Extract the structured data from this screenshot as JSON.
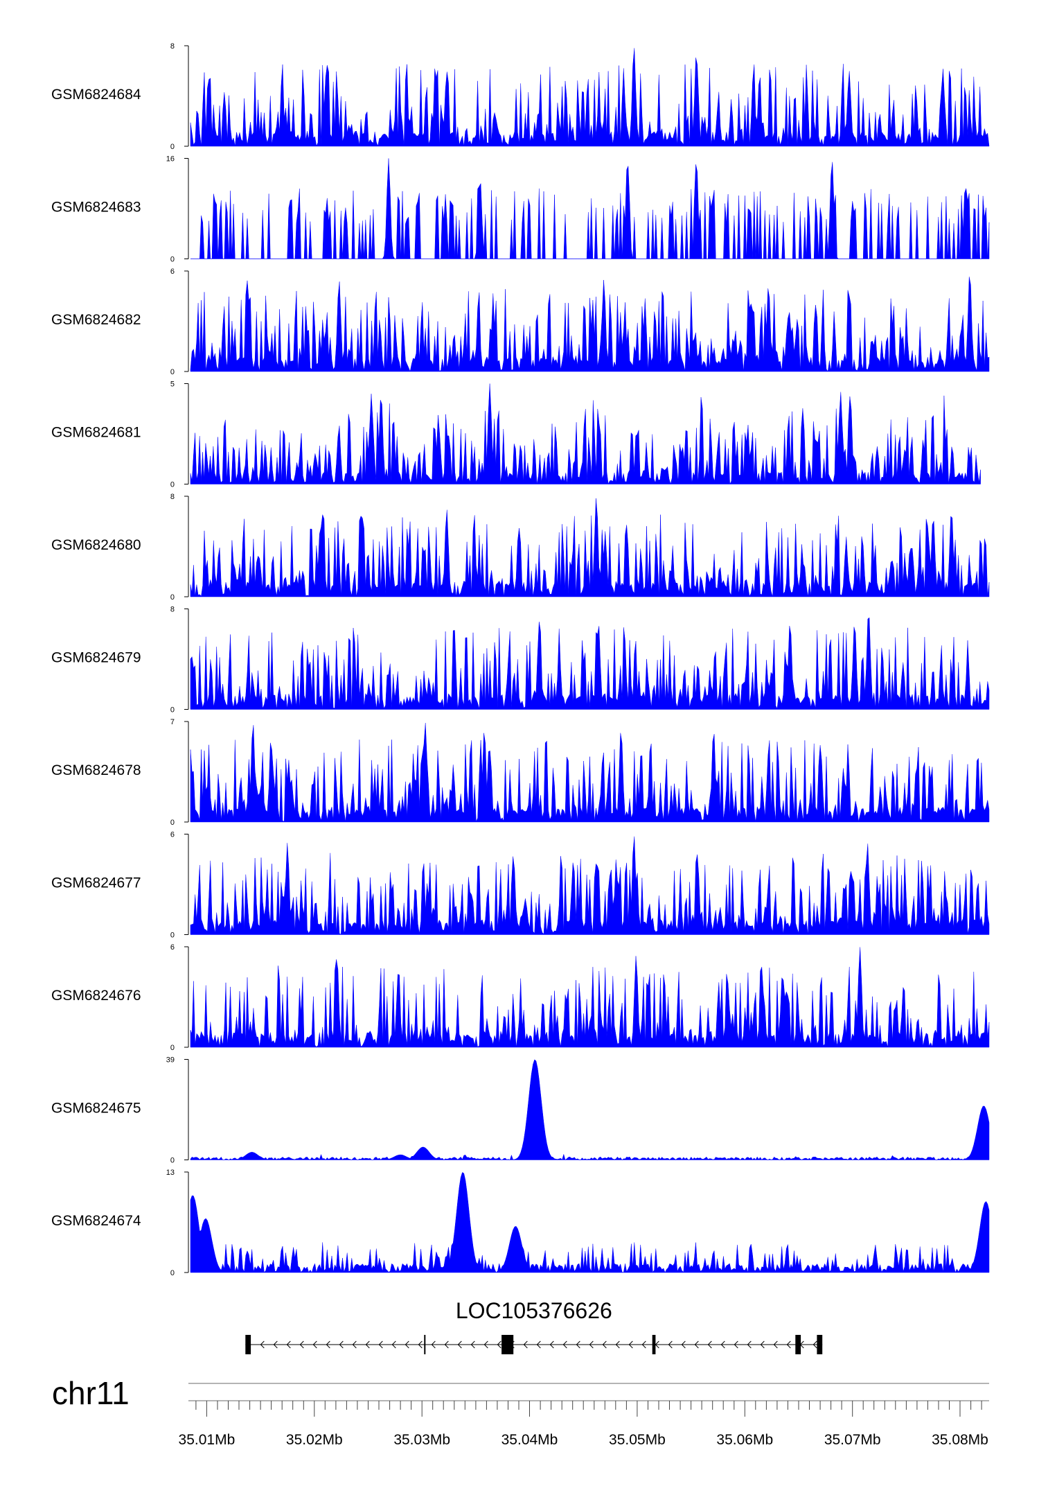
{
  "chart_data": {
    "type": "area",
    "chromosome": "chr11",
    "x_range_mb": [
      35.0083,
      35.0827
    ],
    "fill_color": "#0000ff",
    "x_tick_labels": [
      "35.01Mb",
      "35.02Mb",
      "35.03Mb",
      "35.04Mb",
      "35.05Mb",
      "35.06Mb",
      "35.07Mb",
      "35.08Mb"
    ],
    "x_ticks_mb": [
      35.01,
      35.02,
      35.03,
      35.04,
      35.05,
      35.06,
      35.07,
      35.08
    ],
    "tracks": [
      {
        "name": "GSM6824684",
        "ymax": 8,
        "ymin_label": "0",
        "ymax_label": "8",
        "pattern": "noise",
        "seed": 11,
        "density": 0.55,
        "peaks": [
          [
            35.0497,
            8
          ],
          [
            35.0555,
            7.5
          ],
          [
            35.0697,
            6
          ],
          [
            35.0784,
            6.2
          ],
          [
            35.0323,
            6
          ]
        ]
      },
      {
        "name": "GSM6824683",
        "ymax": 16,
        "ymin_label": "0",
        "ymax_label": "16",
        "pattern": "sparse",
        "seed": 23,
        "density": 0.33,
        "peaks": [
          [
            35.0269,
            16
          ],
          [
            35.0491,
            16
          ],
          [
            35.0555,
            16
          ],
          [
            35.0681,
            16
          ],
          [
            35.0805,
            12
          ],
          [
            35.0354,
            13
          ]
        ]
      },
      {
        "name": "GSM6824682",
        "ymax": 6,
        "ymin_label": "0",
        "ymax_label": "6",
        "pattern": "noise",
        "seed": 37,
        "density": 0.62,
        "peaks": [
          [
            35.0809,
            6
          ],
          [
            35.0138,
            5.5
          ],
          [
            35.0223,
            5.5
          ],
          [
            35.0469,
            5.5
          ],
          [
            35.0622,
            5.2
          ]
        ]
      },
      {
        "name": "GSM6824681",
        "ymax": 5,
        "ymin_label": "0",
        "ymax_label": "5",
        "pattern": "clustered",
        "seed": 41,
        "density": 0.5,
        "peaks": [
          [
            35.0363,
            5
          ],
          [
            35.0262,
            4.5
          ],
          [
            35.0253,
            4.5
          ],
          [
            35.0689,
            4.6
          ],
          [
            35.0698,
            4.5
          ]
        ],
        "end_mb": 35.0819
      },
      {
        "name": "GSM6824680",
        "ymax": 8,
        "ymin_label": "0",
        "ymax_label": "8",
        "pattern": "noise",
        "seed": 53,
        "density": 0.55,
        "peaks": [
          [
            35.0462,
            8
          ],
          [
            35.0244,
            7
          ],
          [
            35.0792,
            7
          ],
          [
            35.0323,
            7
          ],
          [
            35.0775,
            6.5
          ]
        ]
      },
      {
        "name": "GSM6824679",
        "ymax": 8,
        "ymin_label": "0",
        "ymax_label": "8",
        "pattern": "noise",
        "seed": 67,
        "density": 0.55,
        "peaks": [
          [
            35.0715,
            8
          ],
          [
            35.0702,
            7
          ],
          [
            35.0409,
            7
          ],
          [
            35.0464,
            7
          ],
          [
            35.0642,
            7
          ]
        ]
      },
      {
        "name": "GSM6824678",
        "ymax": 7,
        "ymin_label": "0",
        "ymax_label": "7",
        "pattern": "noise",
        "seed": 79,
        "density": 0.58,
        "peaks": [
          [
            35.0303,
            7
          ],
          [
            35.0143,
            7
          ],
          [
            35.0358,
            6.5
          ],
          [
            35.0485,
            6.5
          ],
          [
            35.0571,
            6.5
          ]
        ]
      },
      {
        "name": "GSM6824677",
        "ymax": 6,
        "ymin_label": "0",
        "ymax_label": "6",
        "pattern": "noise",
        "seed": 83,
        "density": 0.58,
        "peaks": [
          [
            35.0497,
            6
          ],
          [
            35.0175,
            5.5
          ],
          [
            35.0714,
            5.5
          ],
          [
            35.0385,
            4.8
          ],
          [
            35.0556,
            4.8
          ]
        ]
      },
      {
        "name": "GSM6824676",
        "ymax": 6,
        "ymin_label": "0",
        "ymax_label": "6",
        "pattern": "noise",
        "seed": 97,
        "density": 0.55,
        "peaks": [
          [
            35.0707,
            6
          ],
          [
            35.0221,
            5.5
          ],
          [
            35.0499,
            5.5
          ],
          [
            35.0278,
            4.5
          ],
          [
            35.0635,
            4.5
          ]
        ]
      },
      {
        "name": "GSM6824675",
        "ymax": 39,
        "ymin_label": "0",
        "ymax_label": "39",
        "pattern": "flat",
        "seed": 101,
        "density": 0.3,
        "peaks": [
          [
            35.0405,
            39
          ],
          [
            35.0822,
            21
          ],
          [
            35.0301,
            5
          ],
          [
            35.0142,
            3
          ],
          [
            35.028,
            2
          ]
        ]
      },
      {
        "name": "GSM6824674",
        "ymax": 13,
        "ymin_label": "0",
        "ymax_label": "13",
        "pattern": "flat-noise",
        "seed": 113,
        "density": 0.5,
        "peaks": [
          [
            35.0338,
            13
          ],
          [
            35.0087,
            10
          ],
          [
            35.0824,
            9.2
          ],
          [
            35.0099,
            7
          ],
          [
            35.0387,
            6
          ]
        ]
      }
    ],
    "gene": {
      "name": "LOC105376626",
      "strand": "-",
      "start_mb": 35.0136,
      "end_mb": 35.0672,
      "exons_mb": [
        [
          35.0136,
          35.0141
        ],
        [
          35.0302,
          35.0303
        ],
        [
          35.0374,
          35.0385
        ],
        [
          35.0514,
          35.0517
        ],
        [
          35.0647,
          35.0652
        ],
        [
          35.0667,
          35.0672
        ]
      ]
    }
  }
}
